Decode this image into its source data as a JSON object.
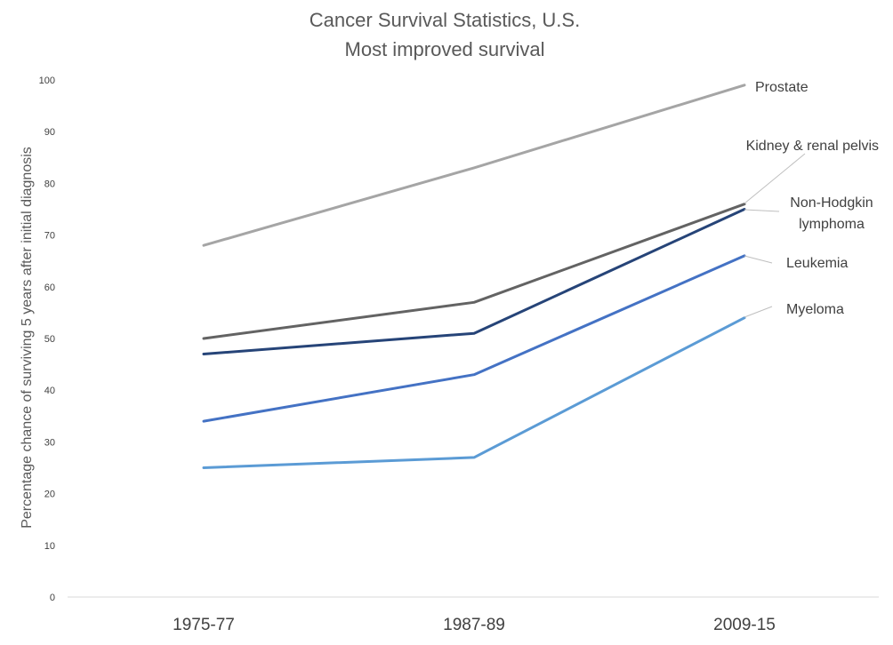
{
  "chart_data": {
    "type": "line",
    "title": "Cancer Survival Statistics, U.S.",
    "subtitle": "Most improved survival",
    "xlabel": "",
    "ylabel": "Percentage chance of surviving 5 years after initial diagnosis",
    "categories": [
      "1975-77",
      "1987-89",
      "2009-15"
    ],
    "ylim": [
      0,
      100
    ],
    "yticks": [
      0,
      10,
      20,
      30,
      40,
      50,
      60,
      70,
      80,
      90,
      100
    ],
    "grid": false,
    "legend": "none",
    "series": [
      {
        "name": "Prostate",
        "values": [
          68,
          83,
          99
        ],
        "color": "#a5a5a5"
      },
      {
        "name": "Kidney & renal pelvis",
        "values": [
          50,
          57,
          76
        ],
        "color": "#636363"
      },
      {
        "name": "Non-Hodgkin lymphoma",
        "values": [
          47,
          51,
          75
        ],
        "color": "#264478"
      },
      {
        "name": "Leukemia",
        "values": [
          34,
          43,
          66
        ],
        "color": "#4472c4"
      },
      {
        "name": "Myeloma",
        "values": [
          25,
          27,
          54
        ],
        "color": "#5b9bd5"
      }
    ]
  }
}
